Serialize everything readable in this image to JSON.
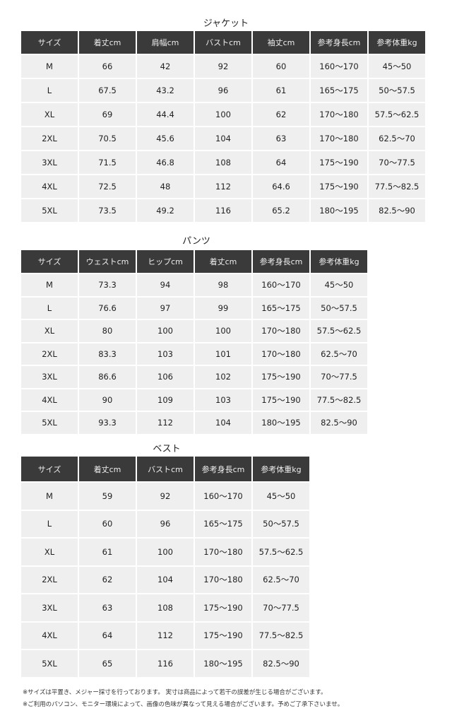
{
  "tables": [
    {
      "title": "ジャケット",
      "headers": [
        "サイズ",
        "着丈cm",
        "肩幅cm",
        "バストcm",
        "袖丈cm",
        "参考身長cm",
        "参考体重kg"
      ],
      "rows": [
        [
          "M",
          "66",
          "42",
          "92",
          "60",
          "160～170",
          "45～50"
        ],
        [
          "L",
          "67.5",
          "43.2",
          "96",
          "61",
          "165～175",
          "50～57.5"
        ],
        [
          "XL",
          "69",
          "44.4",
          "100",
          "62",
          "170～180",
          "57.5～62.5"
        ],
        [
          "2XL",
          "70.5",
          "45.6",
          "104",
          "63",
          "170～180",
          "62.5～70"
        ],
        [
          "3XL",
          "71.5",
          "46.8",
          "108",
          "64",
          "175～190",
          "70～77.5"
        ],
        [
          "4XL",
          "72.5",
          "48",
          "112",
          "64.6",
          "175～190",
          "77.5～82.5"
        ],
        [
          "5XL",
          "73.5",
          "49.2",
          "116",
          "65.2",
          "180～195",
          "82.5～90"
        ]
      ]
    },
    {
      "title": "パンツ",
      "headers": [
        "サイズ",
        "ウェストcm",
        "ヒップcm",
        "着丈cm",
        "参考身長cm",
        "参考体重kg"
      ],
      "rows": [
        [
          "M",
          "73.3",
          "94",
          "98",
          "160～170",
          "45～50"
        ],
        [
          "L",
          "76.6",
          "97",
          "99",
          "165～175",
          "50～57.5"
        ],
        [
          "XL",
          "80",
          "100",
          "100",
          "170～180",
          "57.5～62.5"
        ],
        [
          "2XL",
          "83.3",
          "103",
          "101",
          "170～180",
          "62.5～70"
        ],
        [
          "3XL",
          "86.6",
          "106",
          "102",
          "175～190",
          "70～77.5"
        ],
        [
          "4XL",
          "90",
          "109",
          "103",
          "175～190",
          "77.5～82.5"
        ],
        [
          "5XL",
          "93.3",
          "112",
          "104",
          "180～195",
          "82.5～90"
        ]
      ]
    },
    {
      "title": "ベスト",
      "headers": [
        "サイズ",
        "着丈cm",
        "バストcm",
        "参考身長cm",
        "参考体重kg"
      ],
      "rows": [
        [
          "M",
          "59",
          "92",
          "160～170",
          "45～50"
        ],
        [
          "L",
          "60",
          "96",
          "165～175",
          "50～57.5"
        ],
        [
          "XL",
          "61",
          "100",
          "170～180",
          "57.5～62.5"
        ],
        [
          "2XL",
          "62",
          "104",
          "170～180",
          "62.5～70"
        ],
        [
          "3XL",
          "63",
          "108",
          "175～190",
          "70～77.5"
        ],
        [
          "4XL",
          "64",
          "112",
          "175～190",
          "77.5～82.5"
        ],
        [
          "5XL",
          "65",
          "116",
          "180～195",
          "82.5～90"
        ]
      ]
    }
  ],
  "notes": [
    "※サイズは平置き、メジャー採寸を行っております。 実寸は商品によって若干の誤差が生じる場合がございます。",
    "※ご利用のパソコン、モニター環境によって、画像の色味が異なって見える場合がございます。予めご了承下さいませ。"
  ]
}
